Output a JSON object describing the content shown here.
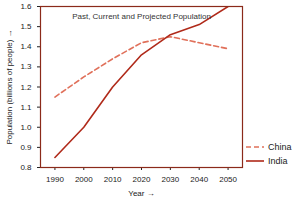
{
  "chart_data": {
    "type": "line",
    "title": "Past, Current and Projected Population",
    "x_label": "Year",
    "y_label": "Population (billions of people)",
    "x": [
      1990,
      2000,
      2010,
      2020,
      2030,
      2040,
      2050
    ],
    "series": [
      {
        "name": "China",
        "color": "#e0705a",
        "line_style": "dashed",
        "values": [
          1.15,
          1.25,
          1.34,
          1.42,
          1.45,
          1.42,
          1.39
        ]
      },
      {
        "name": "India",
        "color": "#b02a1a",
        "line_style": "solid",
        "values": [
          0.85,
          1.0,
          1.2,
          1.36,
          1.46,
          1.51,
          1.6
        ]
      }
    ],
    "xlim": [
      1985,
      2055
    ],
    "xticks": [
      1990,
      2000,
      2010,
      2020,
      2030,
      2040,
      2050
    ],
    "ylim": [
      0.8,
      1.6
    ],
    "yticks": [
      0.8,
      0.9,
      {
        "value": 1,
        "label": "1.0"
      },
      1.1,
      1.2,
      1.3,
      1.4,
      1.5,
      1.6
    ],
    "grid": false,
    "legend": "right"
  }
}
